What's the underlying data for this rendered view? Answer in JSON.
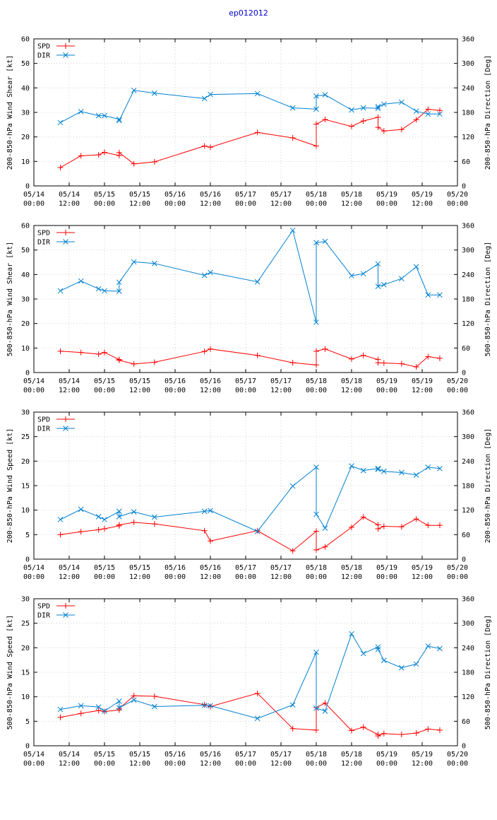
{
  "title": "ep012012",
  "colors": {
    "spd": "#ff0000",
    "dir": "#0080d0",
    "title": "#0000cc"
  },
  "x_ticks": [
    [
      "05/14",
      "00:00"
    ],
    [
      "05/14",
      "12:00"
    ],
    [
      "05/15",
      "00:00"
    ],
    [
      "05/15",
      "12:00"
    ],
    [
      "05/16",
      "00:00"
    ],
    [
      "05/16",
      "12:00"
    ],
    [
      "05/17",
      "00:00"
    ],
    [
      "05/17",
      "12:00"
    ],
    [
      "05/18",
      "00:00"
    ],
    [
      "05/18",
      "12:00"
    ],
    [
      "05/19",
      "00:00"
    ],
    [
      "05/19",
      "12:00"
    ],
    [
      "05/20",
      "00:00"
    ]
  ],
  "chart_data": [
    {
      "type": "line",
      "ylabel": "200-850-hPa Wind Shear [kt]",
      "y2label": "200-850-hPa Direction [Deg]",
      "xlim": [
        0,
        144
      ],
      "ylim": [
        0,
        60
      ],
      "yticks": [
        0,
        10,
        20,
        30,
        40,
        50,
        60
      ],
      "y2lim": [
        0,
        360
      ],
      "y2ticks": [
        0,
        60,
        120,
        180,
        240,
        300,
        360
      ],
      "series": [
        {
          "name": "SPD",
          "axis": "left",
          "x": [
            9,
            16,
            22,
            24,
            29,
            29,
            34,
            41,
            58,
            60,
            76,
            88,
            96,
            96,
            99,
            108,
            112,
            117,
            117,
            119,
            125,
            130,
            134,
            138
          ],
          "y": [
            7.5,
            12.3,
            12.7,
            13.7,
            12.4,
            13.6,
            9.0,
            9.8,
            16.3,
            15.8,
            21.8,
            19.6,
            16.3,
            25.2,
            27.1,
            24.3,
            26.5,
            28.0,
            23.9,
            22.4,
            23.0,
            27.0,
            31.3,
            30.8
          ]
        },
        {
          "name": "DIR",
          "axis": "right",
          "x": [
            9,
            16,
            22,
            24,
            29,
            29,
            34,
            41,
            58,
            60,
            76,
            88,
            96,
            96,
            99,
            108,
            112,
            117,
            117,
            119,
            125,
            130,
            134,
            138
          ],
          "y": [
            155,
            182,
            172,
            172,
            163,
            160,
            234,
            227,
            214,
            224,
            226,
            191,
            188,
            220,
            223,
            186,
            191,
            190,
            194,
            200,
            205,
            183,
            176,
            176
          ]
        }
      ]
    },
    {
      "type": "line",
      "ylabel": "500-850-hPa Wind Shear [kt]",
      "y2label": "500-850-hPa Direction [Deg]",
      "xlim": [
        0,
        144
      ],
      "ylim": [
        0,
        60
      ],
      "yticks": [
        0,
        10,
        20,
        30,
        40,
        50,
        60
      ],
      "y2lim": [
        0,
        360
      ],
      "y2ticks": [
        0,
        60,
        120,
        180,
        240,
        300,
        360
      ],
      "series": [
        {
          "name": "SPD",
          "axis": "left",
          "x": [
            9,
            16,
            22,
            24,
            29,
            29,
            34,
            41,
            58,
            60,
            76,
            88,
            96,
            96,
            99,
            108,
            112,
            117,
            117,
            119,
            125,
            130,
            134,
            138
          ],
          "y": [
            8.7,
            8.2,
            7.5,
            8.2,
            5.3,
            5.0,
            3.5,
            4.2,
            8.6,
            9.6,
            7.0,
            4.0,
            3.1,
            8.7,
            9.6,
            5.5,
            7.0,
            5.3,
            4.0,
            3.9,
            3.6,
            2.3,
            6.5,
            5.8
          ]
        },
        {
          "name": "DIR",
          "axis": "right",
          "x": [
            9,
            16,
            22,
            24,
            29,
            29,
            34,
            41,
            58,
            60,
            76,
            88,
            96,
            96,
            99,
            108,
            112,
            117,
            117,
            119,
            125,
            130,
            134,
            138
          ],
          "y": [
            200,
            224,
            205,
            200,
            199,
            221,
            271,
            267,
            238,
            245,
            222,
            348,
            123,
            318,
            321,
            237,
            242,
            266,
            211,
            215,
            230,
            259,
            190,
            190
          ]
        }
      ]
    },
    {
      "type": "line",
      "ylabel": "200-850-hPa Wind Speed [kt]",
      "y2label": "200-850-hPa Direction [Deg]",
      "xlim": [
        0,
        144
      ],
      "ylim": [
        0,
        30
      ],
      "yticks": [
        0,
        5,
        10,
        15,
        20,
        25,
        30
      ],
      "y2lim": [
        0,
        360
      ],
      "y2ticks": [
        0,
        60,
        120,
        180,
        240,
        300,
        360
      ],
      "series": [
        {
          "name": "SPD",
          "axis": "left",
          "x": [
            9,
            16,
            22,
            24,
            29,
            29,
            34,
            41,
            58,
            60,
            76,
            88,
            96,
            96,
            99,
            108,
            112,
            117,
            117,
            119,
            125,
            130,
            134,
            138
          ],
          "y": [
            5.0,
            5.6,
            6.0,
            6.2,
            6.8,
            7.0,
            7.5,
            7.2,
            5.8,
            3.7,
            5.8,
            1.7,
            5.7,
            1.9,
            2.5,
            6.5,
            8.6,
            7.0,
            6.2,
            6.7,
            6.6,
            8.2,
            6.9,
            6.9
          ]
        },
        {
          "name": "DIR",
          "axis": "right",
          "x": [
            9,
            16,
            22,
            24,
            29,
            29,
            34,
            41,
            58,
            60,
            76,
            88,
            96,
            96,
            99,
            108,
            112,
            117,
            117,
            119,
            125,
            130,
            134,
            138
          ],
          "y": [
            97,
            122,
            104,
            97,
            117,
            104,
            116,
            103,
            117,
            119,
            68,
            179,
            225,
            110,
            76,
            228,
            217,
            222,
            220,
            215,
            212,
            206,
            225,
            222
          ]
        }
      ]
    },
    {
      "type": "line",
      "ylabel": "500-850-hPa Wind Speed [kt]",
      "y2label": "500-850-hPa Direction [Deg]",
      "xlim": [
        0,
        144
      ],
      "ylim": [
        0,
        30
      ],
      "yticks": [
        0,
        5,
        10,
        15,
        20,
        25,
        30
      ],
      "y2lim": [
        0,
        360
      ],
      "y2ticks": [
        0,
        60,
        120,
        180,
        240,
        300,
        360
      ],
      "series": [
        {
          "name": "SPD",
          "axis": "left",
          "x": [
            9,
            16,
            22,
            24,
            29,
            29,
            34,
            41,
            58,
            60,
            76,
            88,
            96,
            96,
            99,
            108,
            112,
            117,
            117,
            119,
            125,
            130,
            134,
            138
          ],
          "y": [
            5.8,
            6.6,
            7.2,
            7.0,
            7.3,
            7.6,
            10.2,
            10.1,
            8.4,
            8.0,
            10.7,
            3.5,
            3.2,
            7.8,
            8.7,
            3.1,
            3.8,
            2.3,
            2.0,
            2.5,
            2.3,
            2.6,
            3.4,
            3.2
          ]
        },
        {
          "name": "DIR",
          "axis": "right",
          "x": [
            9,
            16,
            22,
            24,
            29,
            29,
            34,
            41,
            58,
            60,
            76,
            88,
            96,
            96,
            99,
            108,
            112,
            117,
            117,
            119,
            125,
            130,
            134,
            138
          ],
          "y": [
            89,
            98,
            95,
            85,
            109,
            93,
            112,
            96,
            99,
            98,
            67,
            100,
            229,
            92,
            85,
            274,
            226,
            242,
            236,
            209,
            191,
            200,
            244,
            238
          ]
        }
      ]
    }
  ]
}
